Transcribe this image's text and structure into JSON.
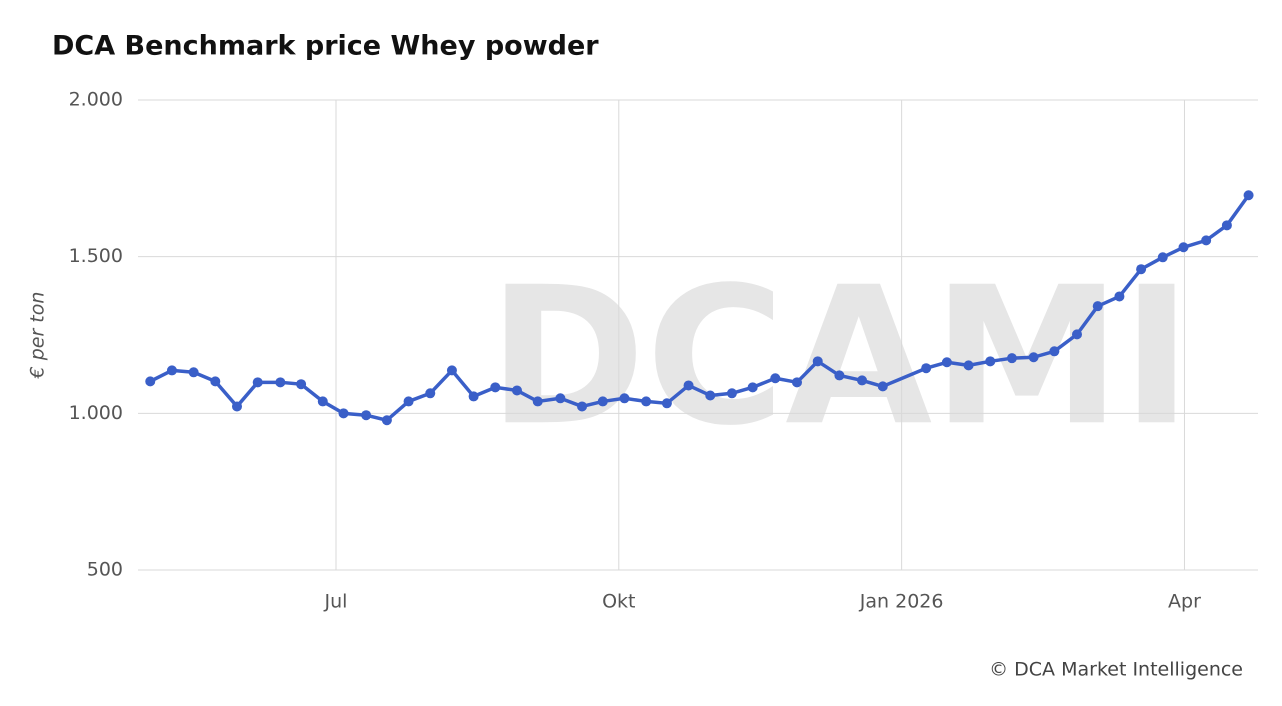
{
  "chart_data": {
    "type": "line",
    "title": "DCA Benchmark price Whey powder",
    "y_label": "€ per ton",
    "source": "© DCA Market Intelligence",
    "watermark": "DCAMI",
    "x": [
      5.03,
      5.26,
      5.49,
      5.72,
      5.95,
      6.17,
      6.41,
      6.63,
      6.86,
      7.08,
      7.32,
      7.54,
      7.77,
      8.0,
      8.23,
      8.46,
      8.69,
      8.92,
      9.14,
      9.38,
      9.61,
      9.83,
      10.06,
      10.29,
      10.51,
      10.74,
      10.97,
      11.2,
      11.42,
      11.66,
      11.89,
      12.11,
      12.34,
      12.58,
      12.8,
      13.26,
      13.48,
      13.71,
      13.94,
      14.17,
      14.4,
      14.62,
      14.86,
      15.08,
      15.31,
      15.54,
      15.77,
      15.99,
      16.23,
      16.45,
      16.68
    ],
    "series": [
      {
        "name": "Whey powder",
        "color": "#3a5fc8",
        "values": [
          1102,
          1137,
          1131,
          1102,
          1022,
          1099,
          1099,
          1093,
          1038,
          1000,
          994,
          978,
          1038,
          1064,
          1137,
          1054,
          1083,
          1073,
          1038,
          1048,
          1022,
          1038,
          1048,
          1038,
          1032,
          1089,
          1057,
          1064,
          1083,
          1112,
          1099,
          1166,
          1121,
          1105,
          1086,
          1144,
          1163,
          1153,
          1166,
          1176,
          1179,
          1198,
          1252,
          1342,
          1373,
          1460,
          1498,
          1530,
          1552,
          1600,
          1696
        ]
      }
    ],
    "xlim": [
      4.9,
      16.78
    ],
    "xticks": [
      {
        "value": 7,
        "label": "Jul"
      },
      {
        "value": 10,
        "label": "Okt"
      },
      {
        "value": 13,
        "label": "Jan 2026"
      },
      {
        "value": 16,
        "label": "Apr"
      }
    ],
    "ylim": [
      500,
      2000
    ],
    "yticks": [
      500,
      {
        "value": 1000,
        "label": "1.000"
      },
      {
        "value": 1500,
        "label": "1.500"
      },
      {
        "value": 2000,
        "label": "2.000"
      }
    ],
    "grid": true
  }
}
